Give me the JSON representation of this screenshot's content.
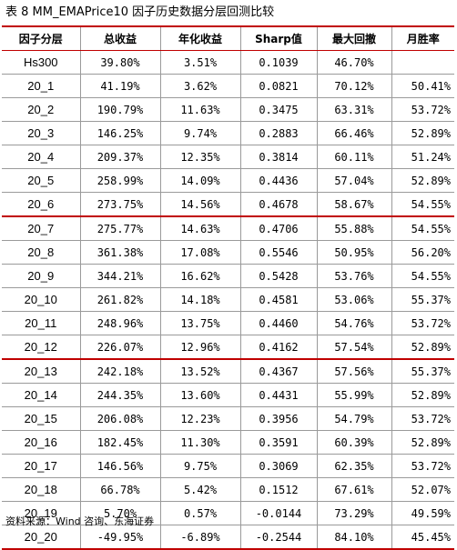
{
  "title": "表 8 MM_EMAPrice10 因子历史数据分层回测比较",
  "columns": [
    "因子分层",
    "总收益",
    "年化收益",
    "Sharp值",
    "最大回撤",
    "月胜率"
  ],
  "rows": [
    [
      "Hs300",
      "39.80%",
      "3.51%",
      "0.1039",
      "46.70%",
      ""
    ],
    [
      "20_1",
      "41.19%",
      "3.62%",
      "0.0821",
      "70.12%",
      "50.41%"
    ],
    [
      "20_2",
      "190.79%",
      "11.63%",
      "0.3475",
      "63.31%",
      "53.72%"
    ],
    [
      "20_3",
      "146.25%",
      "9.74%",
      "0.2883",
      "66.46%",
      "52.89%"
    ],
    [
      "20_4",
      "209.37%",
      "12.35%",
      "0.3814",
      "60.11%",
      "51.24%"
    ],
    [
      "20_5",
      "258.99%",
      "14.09%",
      "0.4436",
      "57.04%",
      "52.89%"
    ],
    [
      "20_6",
      "273.75%",
      "14.56%",
      "0.4678",
      "58.67%",
      "54.55%"
    ],
    [
      "20_7",
      "275.77%",
      "14.63%",
      "0.4706",
      "55.88%",
      "54.55%"
    ],
    [
      "20_8",
      "361.38%",
      "17.08%",
      "0.5546",
      "50.95%",
      "56.20%"
    ],
    [
      "20_9",
      "344.21%",
      "16.62%",
      "0.5428",
      "53.76%",
      "54.55%"
    ],
    [
      "20_10",
      "261.82%",
      "14.18%",
      "0.4581",
      "53.06%",
      "55.37%"
    ],
    [
      "20_11",
      "248.96%",
      "13.75%",
      "0.4460",
      "54.76%",
      "53.72%"
    ],
    [
      "20_12",
      "226.07%",
      "12.96%",
      "0.4162",
      "57.54%",
      "52.89%"
    ],
    [
      "20_13",
      "242.18%",
      "13.52%",
      "0.4367",
      "57.56%",
      "55.37%"
    ],
    [
      "20_14",
      "244.35%",
      "13.60%",
      "0.4431",
      "55.99%",
      "52.89%"
    ],
    [
      "20_15",
      "206.08%",
      "12.23%",
      "0.3956",
      "54.79%",
      "53.72%"
    ],
    [
      "20_16",
      "182.45%",
      "11.30%",
      "0.3591",
      "60.39%",
      "52.89%"
    ],
    [
      "20_17",
      "146.56%",
      "9.75%",
      "0.3069",
      "62.35%",
      "53.72%"
    ],
    [
      "20_18",
      "66.78%",
      "5.42%",
      "0.1512",
      "67.61%",
      "52.07%"
    ],
    [
      "20_19",
      "5.70%",
      "0.57%",
      "-0.0144",
      "73.29%",
      "49.59%"
    ],
    [
      "20_20",
      "-49.95%",
      "-6.89%",
      "-0.2544",
      "84.10%",
      "45.45%"
    ]
  ],
  "group_start_rows": [
    7,
    13
  ],
  "source": "资料来源：Wind 咨询、东海证券"
}
